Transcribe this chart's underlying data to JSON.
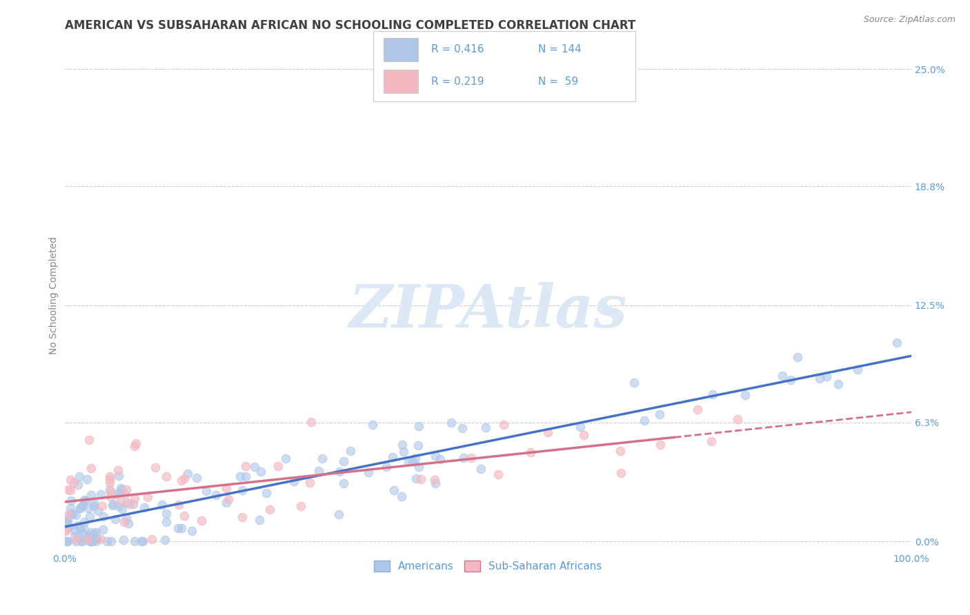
{
  "title": "AMERICAN VS SUBSAHARAN AFRICAN NO SCHOOLING COMPLETED CORRELATION CHART",
  "source": "Source: ZipAtlas.com",
  "ylabel": "No Schooling Completed",
  "background_color": "#ffffff",
  "watermark_text": "ZIPAtlas",
  "americans": {
    "color": "#aec6e8",
    "line_color": "#4472c4",
    "R": 0.416,
    "N": 144
  },
  "subsaharan": {
    "color": "#f4b8c1",
    "line_color": "#d4708a",
    "R": 0.219,
    "N": 59
  },
  "xlim": [
    0.0,
    1.0
  ],
  "ylim": [
    -0.005,
    0.265
  ],
  "yticks": [
    0.0,
    0.063,
    0.125,
    0.188,
    0.25
  ],
  "ytick_labels": [
    "0.0%",
    "6.3%",
    "12.5%",
    "18.8%",
    "25.0%"
  ],
  "xtick_labels": [
    "0.0%",
    "100.0%"
  ],
  "title_fontsize": 12,
  "axis_label_fontsize": 10,
  "tick_fontsize": 10,
  "title_color": "#404040",
  "axis_color": "#5b9bd5",
  "watermark_color": "#dce8f5",
  "grid_color": "#cccccc",
  "legend_text_color": "#5b9bd5",
  "source_color": "#888888"
}
